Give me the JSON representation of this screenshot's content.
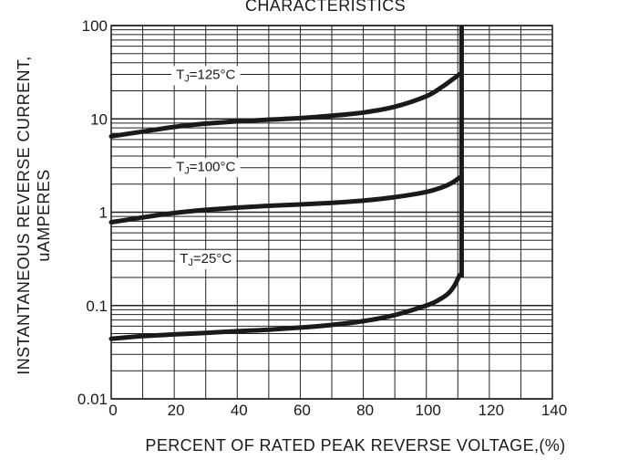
{
  "chart_data": {
    "type": "line",
    "title": "CHARACTERISTICS",
    "xlabel": "PERCENT OF RATED PEAK REVERSE VOLTAGE,(%)",
    "ylabel": [
      "INSTANTANEOUS REVERSE CURRENT,",
      "uAMPERES"
    ],
    "xlim": [
      0,
      140
    ],
    "ylim": [
      0.01,
      100
    ],
    "yscale": "log",
    "grid": true,
    "x_ticks": [
      0,
      20,
      40,
      60,
      80,
      100,
      120,
      140
    ],
    "y_ticks": [
      {
        "value": 0.01,
        "label": "0.01"
      },
      {
        "value": 0.1,
        "label": "0.1"
      },
      {
        "value": 1,
        "label": "1"
      },
      {
        "value": 10,
        "label": "10"
      },
      {
        "value": 100,
        "label": "100"
      }
    ],
    "line_color": "#1a1a1a",
    "grid_color": "#222222",
    "series": [
      {
        "name": "TJ=125°C",
        "label_parts": [
          "T",
          "J",
          "=125°C"
        ],
        "label_at": {
          "x": 30,
          "y": 30
        },
        "x": [
          0,
          10,
          20,
          30,
          40,
          50,
          60,
          70,
          80,
          90,
          100,
          105,
          108,
          110.5
        ],
        "y": [
          6.5,
          7.3,
          8.2,
          8.9,
          9.4,
          9.8,
          10.2,
          10.8,
          11.7,
          13.5,
          17.5,
          22,
          26,
          30
        ]
      },
      {
        "name": "TJ=100°C",
        "label_parts": [
          "T",
          "J",
          "=100°C"
        ],
        "label_at": {
          "x": 30,
          "y": 3.1
        },
        "x": [
          0,
          10,
          20,
          30,
          40,
          50,
          60,
          70,
          80,
          90,
          100,
          105,
          108,
          110.5
        ],
        "y": [
          0.78,
          0.88,
          0.98,
          1.06,
          1.12,
          1.17,
          1.21,
          1.26,
          1.33,
          1.45,
          1.65,
          1.85,
          2.05,
          2.35
        ]
      },
      {
        "name": "TJ=25°C",
        "label_parts": [
          "T",
          "J",
          "=25°C"
        ],
        "label_at": {
          "x": 30,
          "y": 0.32
        },
        "x": [
          0,
          10,
          20,
          30,
          40,
          50,
          60,
          70,
          80,
          90,
          100,
          104,
          107,
          109,
          110.5
        ],
        "y": [
          0.044,
          0.047,
          0.049,
          0.051,
          0.053,
          0.055,
          0.058,
          0.062,
          0.068,
          0.079,
          0.1,
          0.115,
          0.135,
          0.165,
          0.21
        ]
      }
    ],
    "breakdown": {
      "x": 111.2,
      "y_from": 0.2,
      "y_to": 100
    }
  }
}
